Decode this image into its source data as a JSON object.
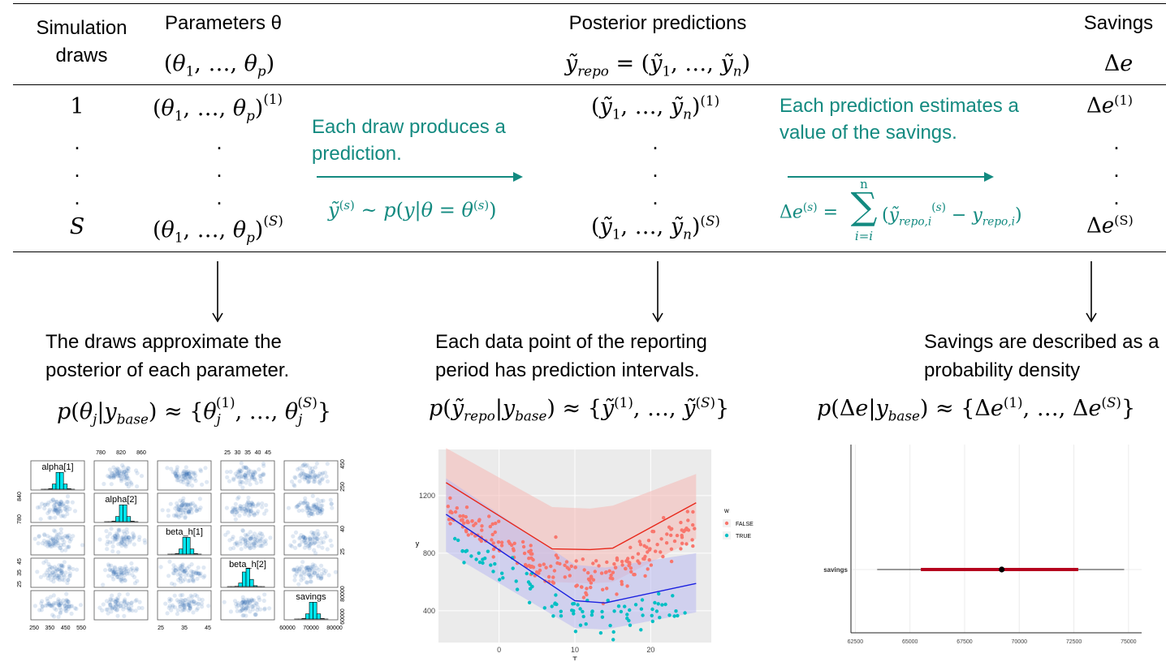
{
  "header": {
    "col_draws": "Simulation\ndraws",
    "col_params": "Parameters θ",
    "col_params_vec": "(θ1, …, θp)",
    "col_post": "Posterior predictions",
    "col_post_vec": "ỹrepo = (ỹ1, …, ỹn)",
    "col_savings": "Savings",
    "col_savings_sym": "Δe"
  },
  "rows": {
    "first_index": "1",
    "last_index": "S",
    "dot": "."
  },
  "annotations": {
    "draw_text": "Each draw produces a prediction.",
    "draw_formula": "ỹ(s) ~ p(y|θ = θ(s))",
    "pred_text": "Each prediction estimates a value of the savings.",
    "pred_formula": "Δe(s) = Σ i=i..n (ỹrepo,i(s) − yrepo,i)",
    "sum_top": "n",
    "sum_bottom": "i=i"
  },
  "captions": {
    "left": "The draws approximate the posterior of each parameter.",
    "left_formula": "p(θj|ybase) ≈ {θj(1), …, θj(S)}",
    "middle": "Each data point of the reporting period has prediction intervals.",
    "middle_formula": "p(ỹrepo|ybase) ≈ {ỹ(1), …, ỹ(S)}",
    "right": "Savings are described as a probability density",
    "right_formula": "p(Δe|ybase) ≈ {Δe(1), …, Δe(S)}"
  },
  "pairs_plot": {
    "diag_labels": [
      "alpha[1]",
      "alpha[2]",
      "beta_h[1]",
      "beta_h[2]",
      "savings"
    ],
    "top_ticks": [
      [
        "780",
        "820",
        "860"
      ],
      [
        "25",
        "30",
        "35",
        "40",
        "45"
      ]
    ],
    "bottom_ticks": [
      [
        "250",
        "350",
        "450",
        "550"
      ],
      [
        "25",
        "35",
        "45"
      ],
      [
        "60000",
        "70000",
        "80000"
      ]
    ],
    "left_ticks": [
      [
        "780",
        "840"
      ],
      [
        "25",
        "35",
        "45"
      ]
    ],
    "right_ticks": [
      [
        "250",
        "450"
      ],
      [
        "25",
        "40"
      ],
      [
        "60000",
        "80000"
      ]
    ],
    "colors": {
      "hist": "#00e5ee",
      "cloud": "#1f5fa8"
    }
  },
  "chart_data": [
    {
      "type": "scatter",
      "xlabel": "T",
      "ylabel": "y",
      "x_ticks": [
        "0",
        "10",
        "20"
      ],
      "y_ticks": [
        "400",
        "800",
        "1200"
      ],
      "xlim": [
        -8,
        28
      ],
      "ylim": [
        180,
        1520
      ],
      "legend_title": "w",
      "legend_position": "right",
      "series": [
        {
          "name": "FALSE",
          "color": "#f8766d"
        },
        {
          "name": "TRUE",
          "color": "#00bfc4"
        }
      ],
      "fit_lines": [
        {
          "series": "FALSE",
          "color": "#e8281b",
          "x": [
            -7,
            7,
            12,
            15,
            26
          ],
          "y": [
            1290,
            830,
            825,
            835,
            1150
          ],
          "band_upper": [
            1530,
            1120,
            1110,
            1130,
            1350
          ],
          "band_lower": [
            1050,
            600,
            590,
            600,
            900
          ]
        },
        {
          "series": "TRUE",
          "color": "#1a20e0",
          "x": [
            -7,
            10,
            14,
            26
          ],
          "y": [
            1070,
            470,
            455,
            590
          ],
          "band_upper": [
            1320,
            720,
            700,
            800
          ],
          "band_lower": [
            810,
            280,
            270,
            390
          ]
        }
      ],
      "grid": true
    },
    {
      "type": "interval",
      "categories": [
        "savings"
      ],
      "x_ticks": [
        "62500",
        "65000",
        "67500",
        "70000",
        "72500",
        "75000"
      ],
      "xlim": [
        62300,
        75600
      ],
      "point": 69200,
      "inner_interval": [
        65500,
        72700
      ],
      "outer_interval": [
        63500,
        74800
      ],
      "colors": {
        "inner": "#b5001e",
        "outer": "#333333",
        "point": "#000000"
      },
      "grid": true
    }
  ]
}
